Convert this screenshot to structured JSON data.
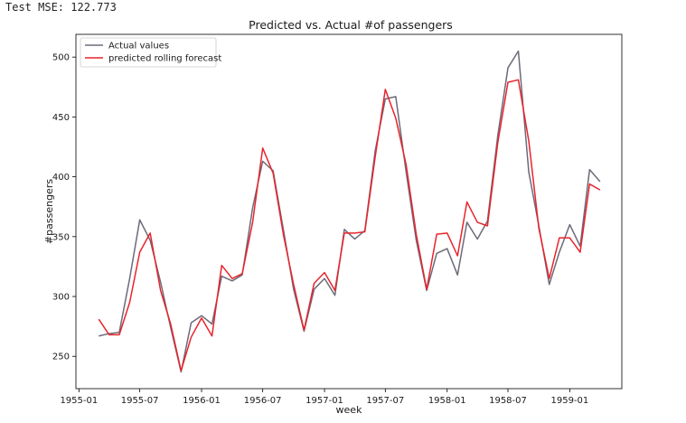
{
  "output_text": "Test MSE: 122.773",
  "chart_data": {
    "type": "line",
    "title": "Predicted vs. Actual #of passengers",
    "xlabel": "week",
    "ylabel": "#passengers",
    "x_ticks": [
      "1955-01",
      "1955-07",
      "1956-01",
      "1956-07",
      "1957-01",
      "1957-07",
      "1958-01",
      "1958-07",
      "1959-01"
    ],
    "y_ticks": [
      250,
      300,
      350,
      400,
      450,
      500
    ],
    "ylim": [
      223,
      519
    ],
    "x_range": [
      "1954-12-23",
      "1959-06-05"
    ],
    "grid": false,
    "legend_position": "top-left",
    "x": [
      "1955-03",
      "1955-04",
      "1955-05",
      "1955-06",
      "1955-07",
      "1955-08",
      "1955-09",
      "1955-10",
      "1955-11",
      "1955-12",
      "1956-01",
      "1956-02",
      "1956-03",
      "1956-04",
      "1956-05",
      "1956-06",
      "1956-07",
      "1956-08",
      "1956-09",
      "1956-10",
      "1956-11",
      "1956-12",
      "1957-01",
      "1957-02",
      "1957-03",
      "1957-04",
      "1957-05",
      "1957-06",
      "1957-07",
      "1957-08",
      "1957-09",
      "1957-10",
      "1957-11",
      "1957-12",
      "1958-01",
      "1958-02",
      "1958-03",
      "1958-04",
      "1958-05",
      "1958-06",
      "1958-07",
      "1958-08",
      "1958-09",
      "1958-10",
      "1958-11",
      "1958-12",
      "1959-01",
      "1959-02",
      "1959-03",
      "1959-04"
    ],
    "series": [
      {
        "name": "Actual values",
        "color": "#6b6b7a",
        "values": [
          267,
          269,
          270,
          315,
          364,
          347,
          312,
          274,
          237,
          278,
          284,
          277,
          317,
          313,
          318,
          374,
          413,
          405,
          355,
          306,
          271,
          306,
          315,
          301,
          356,
          348,
          355,
          422,
          465,
          467,
          404,
          347,
          305,
          336,
          340,
          318,
          362,
          348,
          363,
          435,
          491,
          505,
          404,
          359,
          310,
          337,
          360,
          342,
          406,
          396
        ]
      },
      {
        "name": "predicted rolling forecast",
        "color": "#e8242c",
        "values": [
          281,
          268,
          268,
          295,
          337,
          353,
          305,
          277,
          238,
          266,
          282,
          267,
          326,
          315,
          319,
          362,
          424,
          403,
          351,
          310,
          272,
          311,
          320,
          305,
          353,
          353,
          354,
          417,
          473,
          449,
          410,
          352,
          306,
          352,
          353,
          334,
          379,
          362,
          359,
          429,
          479,
          481,
          430,
          357,
          315,
          349,
          349,
          337,
          394,
          389
        ]
      }
    ]
  }
}
